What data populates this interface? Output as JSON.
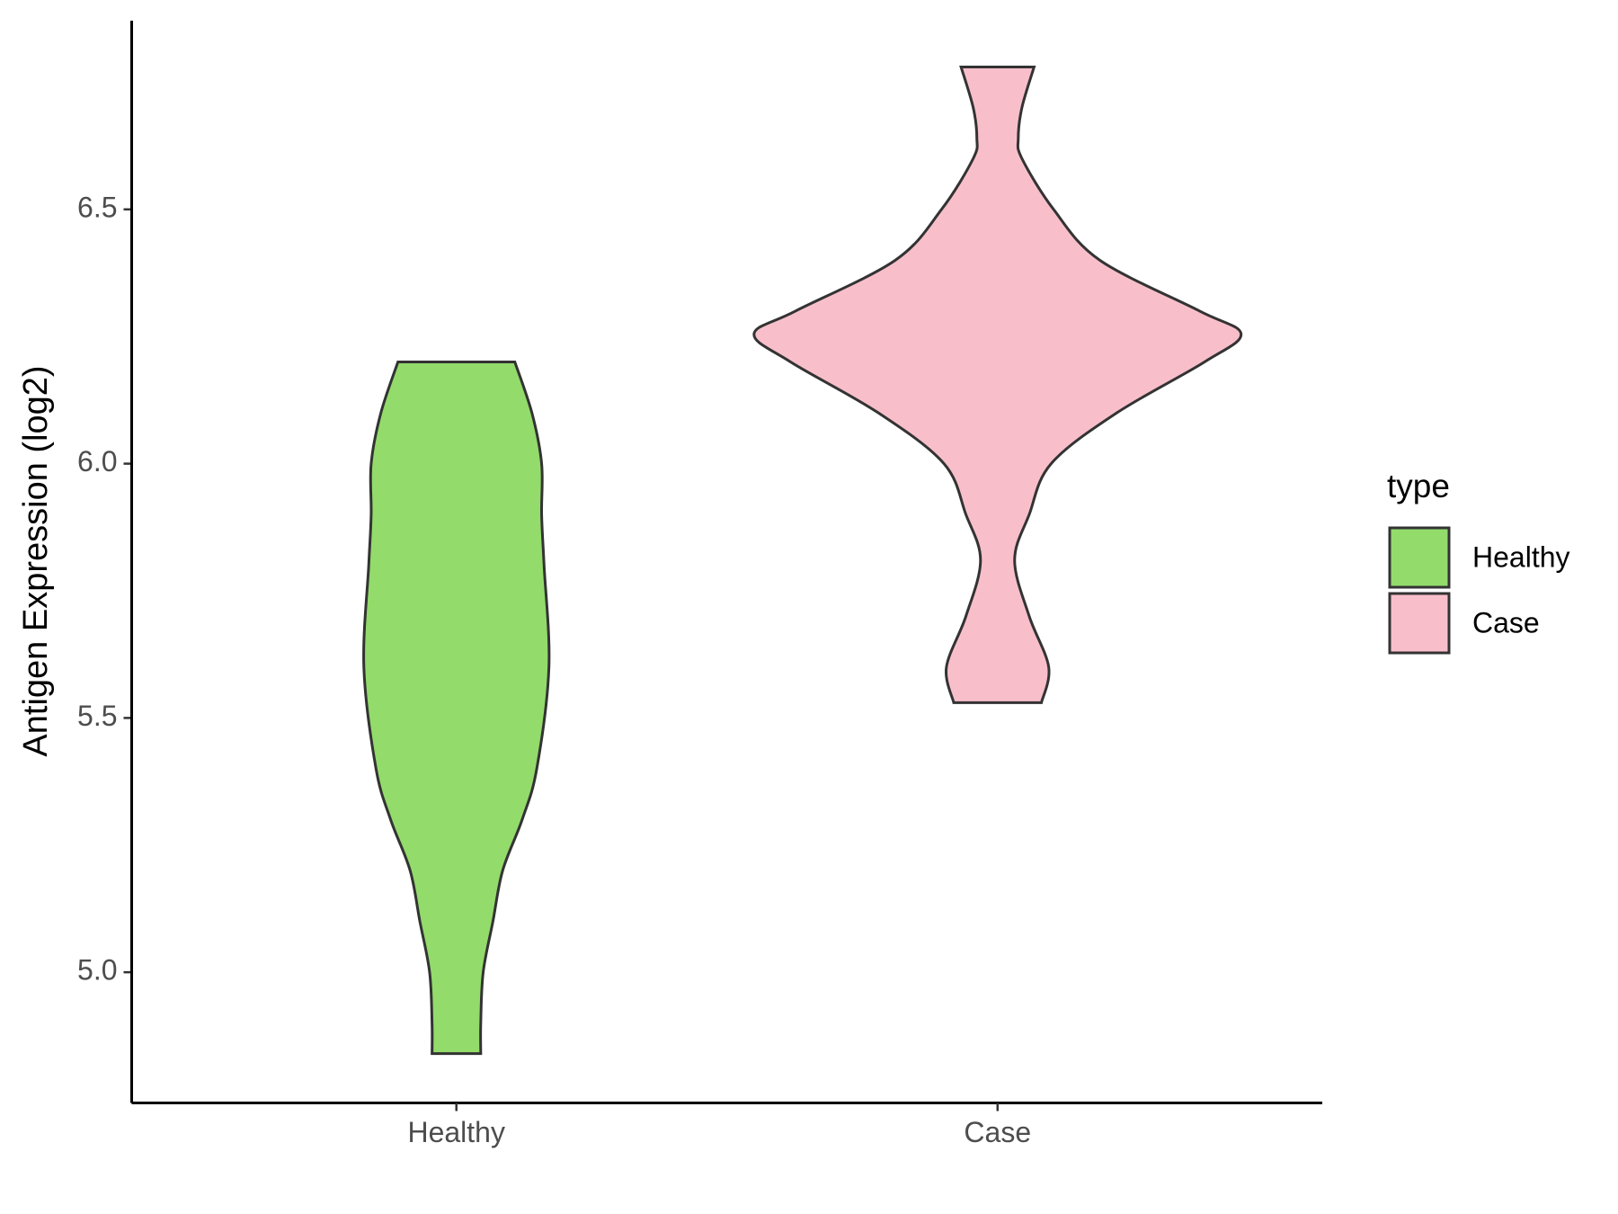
{
  "chart_data": {
    "type": "violin",
    "y_label": "Antigen Expression (log2)",
    "categories": [
      "Healthy",
      "Case"
    ],
    "series": [
      {
        "name": "Healthy",
        "color": "#93db6b",
        "y": [
          6.2,
          6.1,
          6.0,
          5.9,
          5.8,
          5.6,
          5.4,
          5.3,
          5.2,
          5.1,
          5.0,
          4.9,
          4.84
        ],
        "density": [
          0.24,
          0.31,
          0.35,
          0.35,
          0.36,
          0.38,
          0.33,
          0.27,
          0.19,
          0.15,
          0.11,
          0.1,
          0.1
        ]
      },
      {
        "name": "Case",
        "color": "#f8bfcb",
        "y": [
          6.78,
          6.7,
          6.64,
          6.6,
          6.5,
          6.4,
          6.3,
          6.255,
          6.2,
          6.1,
          6.0,
          5.9,
          5.81,
          5.7,
          5.6,
          5.53
        ],
        "density": [
          0.15,
          0.1,
          0.085,
          0.1,
          0.23,
          0.42,
          0.83,
          1.0,
          0.85,
          0.49,
          0.22,
          0.13,
          0.07,
          0.13,
          0.21,
          0.18
        ]
      }
    ],
    "ylim": [
      4.743,
      6.871
    ],
    "yticks": [
      {
        "value": 5,
        "label": "5.0"
      },
      5.5,
      {
        "value": 6,
        "label": "6.0"
      },
      6.5
    ],
    "legend_title": "type",
    "legend_position": "right"
  }
}
